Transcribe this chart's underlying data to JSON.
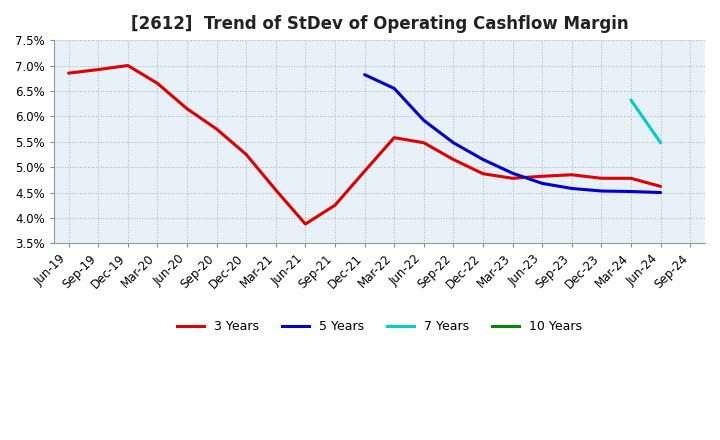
{
  "title": "[2612]  Trend of StDev of Operating Cashflow Margin",
  "ylim": [
    0.035,
    0.075
  ],
  "yticks": [
    0.035,
    0.04,
    0.045,
    0.05,
    0.055,
    0.06,
    0.065,
    0.07,
    0.075
  ],
  "ytick_labels": [
    "3.5%",
    "4.0%",
    "4.5%",
    "5.0%",
    "5.5%",
    "6.0%",
    "6.5%",
    "7.0%",
    "7.5%"
  ],
  "background_color": "#ffffff",
  "plot_bg_color": "#e8f0f8",
  "grid_color": "#aaaaaa",
  "series": {
    "3 Years": {
      "color": "#dd0000",
      "x": [
        "Jun-19",
        "Sep-19",
        "Dec-19",
        "Mar-20",
        "Jun-20",
        "Sep-20",
        "Dec-20",
        "Mar-21",
        "Jun-21",
        "Sep-21",
        "Dec-21",
        "Mar-22",
        "Jun-22",
        "Sep-22",
        "Dec-22",
        "Mar-23",
        "Jun-23",
        "Sep-23",
        "Dec-23",
        "Mar-24",
        "Jun-24"
      ],
      "y": [
        0.0685,
        0.0692,
        0.07,
        0.0665,
        0.0615,
        0.0575,
        0.0525,
        0.0455,
        0.0388,
        0.0425,
        0.0492,
        0.0558,
        0.0548,
        0.0515,
        0.0487,
        0.0478,
        0.0482,
        0.0485,
        0.0478,
        0.0478,
        0.0462
      ]
    },
    "5 Years": {
      "color": "#0000cc",
      "x": [
        "Dec-21",
        "Mar-22",
        "Jun-22",
        "Sep-22",
        "Dec-22",
        "Mar-23",
        "Jun-23",
        "Sep-23",
        "Dec-23",
        "Mar-24",
        "Jun-24"
      ],
      "y": [
        0.0682,
        0.0655,
        0.0592,
        0.0548,
        0.0515,
        0.0488,
        0.0468,
        0.0458,
        0.0453,
        0.0452,
        0.045
      ]
    },
    "7 Years": {
      "color": "#00cccc",
      "x": [
        "Mar-24",
        "Jun-24"
      ],
      "y": [
        0.0632,
        0.0548
      ]
    },
    "10 Years": {
      "color": "#008800",
      "x": [
        "Jun-24"
      ],
      "y": [
        0.045
      ]
    }
  },
  "x_all_labels": [
    "Jun-19",
    "Sep-19",
    "Dec-19",
    "Mar-20",
    "Jun-20",
    "Sep-20",
    "Dec-20",
    "Mar-21",
    "Jun-21",
    "Sep-21",
    "Dec-21",
    "Mar-22",
    "Jun-22",
    "Sep-22",
    "Dec-22",
    "Mar-23",
    "Jun-23",
    "Sep-23",
    "Dec-23",
    "Mar-24",
    "Jun-24",
    "Sep-24"
  ],
  "title_fontsize": 12,
  "tick_fontsize": 8.5,
  "legend_fontsize": 9
}
